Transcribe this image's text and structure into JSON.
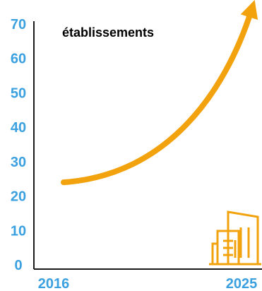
{
  "chart_data": {
    "type": "line",
    "title": "établissements",
    "xlabel": "",
    "ylabel": "",
    "x": [
      "2016",
      "2025"
    ],
    "series": [
      {
        "values": [
          24,
          74
        ]
      }
    ],
    "xticks": [
      "2016",
      "2025"
    ],
    "yticks": [
      "0",
      "10",
      "20",
      "30",
      "40",
      "50",
      "60",
      "70"
    ],
    "ylim": [
      0,
      70
    ],
    "grid": false,
    "legend": "none",
    "colors": {
      "tick_labels": "#3aa0e0",
      "series": "#f2a20c",
      "axes": "#1a1a1a",
      "title": "#000000",
      "icon": "#f2a20c"
    },
    "icon": "buildings-icon"
  }
}
